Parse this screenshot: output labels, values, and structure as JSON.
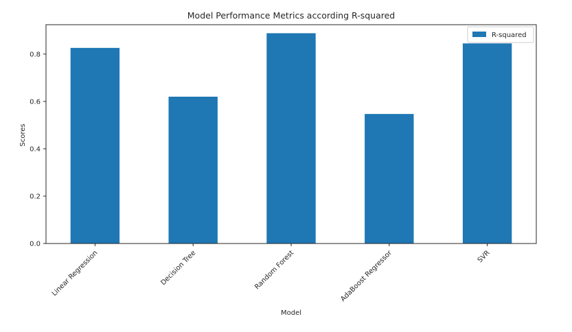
{
  "chart_data": {
    "type": "bar",
    "title": "Model Performance Metrics according R-squared",
    "xlabel": "Model",
    "ylabel": "Scores",
    "categories": [
      "Linear Regression",
      "Decision Tree",
      "Random Forest",
      "AdaBoost Regressor",
      "SVR"
    ],
    "series": [
      {
        "name": "R-squared",
        "values": [
          0.826,
          0.62,
          0.888,
          0.547,
          0.845
        ]
      }
    ],
    "ylim": [
      0,
      0.924
    ],
    "yticks": [
      0.0,
      0.2,
      0.4,
      0.6,
      0.8
    ],
    "ytick_labels": [
      "0.0",
      "0.2",
      "0.4",
      "0.6",
      "0.8"
    ],
    "grid": false,
    "legend": "top-right",
    "colors": {
      "bar": "#1f77b4",
      "axis": "#262626"
    }
  }
}
